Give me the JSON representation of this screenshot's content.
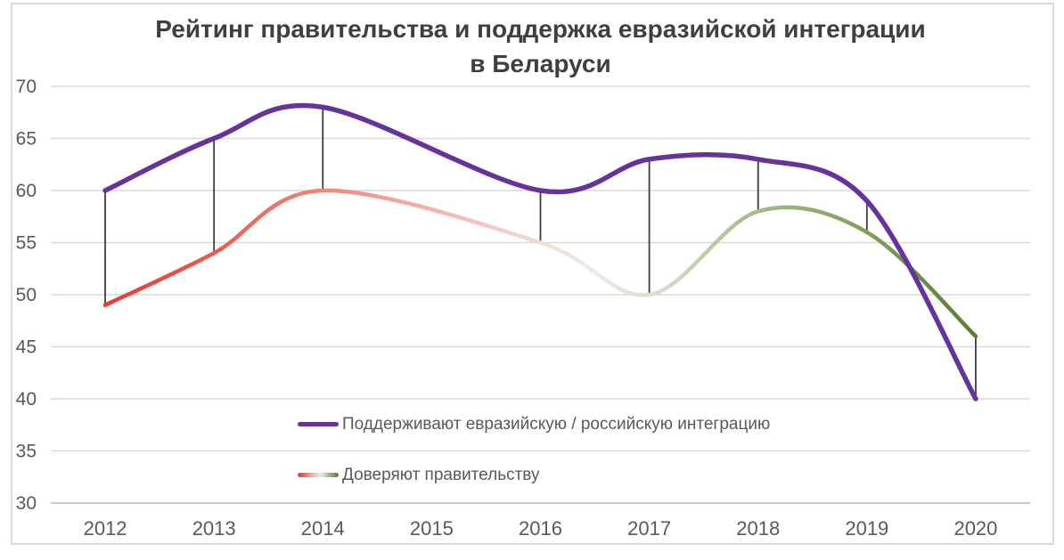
{
  "title": {
    "lines": [
      "Рейтинг правительства и поддержка евразийской интеграции",
      "в Беларуси"
    ]
  },
  "chart_data": {
    "type": "line",
    "title": "Рейтинг правительства и поддержка евразийской интеграции в Беларуси",
    "categories": [
      "2012",
      "2013",
      "2014",
      "2015",
      "2016",
      "2017",
      "2018",
      "2019",
      "2020"
    ],
    "series": [
      {
        "name": "Поддерживают евразийскую / российскую интеграцию",
        "values": [
          60,
          65,
          68,
          null,
          60,
          63,
          63,
          59,
          40
        ],
        "color": "#66339B",
        "line_width": 5.5,
        "smooth": true
      },
      {
        "name": "Доверяют правительству",
        "values": [
          49,
          54,
          60,
          null,
          55,
          50,
          58,
          56,
          46
        ],
        "line_width": 4.5,
        "smooth": true,
        "gradient_stops": [
          {
            "offset": 0.0,
            "color": "#E73B33"
          },
          {
            "offset": 0.125,
            "color": "#EA5A50"
          },
          {
            "offset": 0.25,
            "color": "#F0867D"
          },
          {
            "offset": 0.375,
            "color": "#F3B3AB"
          },
          {
            "offset": 0.5,
            "color": "#F0DCD7"
          },
          {
            "offset": 0.56,
            "color": "#ECEAE5"
          },
          {
            "offset": 0.625,
            "color": "#DBE1D1"
          },
          {
            "offset": 0.75,
            "color": "#A1BB87"
          },
          {
            "offset": 0.875,
            "color": "#7CA157"
          },
          {
            "offset": 1.0,
            "color": "#557E35"
          }
        ]
      }
    ],
    "high_low_lines": {
      "color": "#3D3D3D",
      "width": 1.8
    },
    "y_axis": {
      "min": 30,
      "max": 70,
      "step": 5,
      "ticks": [
        70,
        65,
        60,
        55,
        50,
        45,
        40,
        35,
        30
      ]
    },
    "ylim": [
      30,
      70
    ],
    "grid": true,
    "legend_position": "inside-bottom"
  },
  "colors": {
    "background": "#FFFFFF",
    "border": "#D9D9D9",
    "grid": "#D9D9D9",
    "axis_line": "#CBCBCB",
    "tick_label": "#595959",
    "title": "#3F3F3F",
    "legend_text": "#595959"
  }
}
